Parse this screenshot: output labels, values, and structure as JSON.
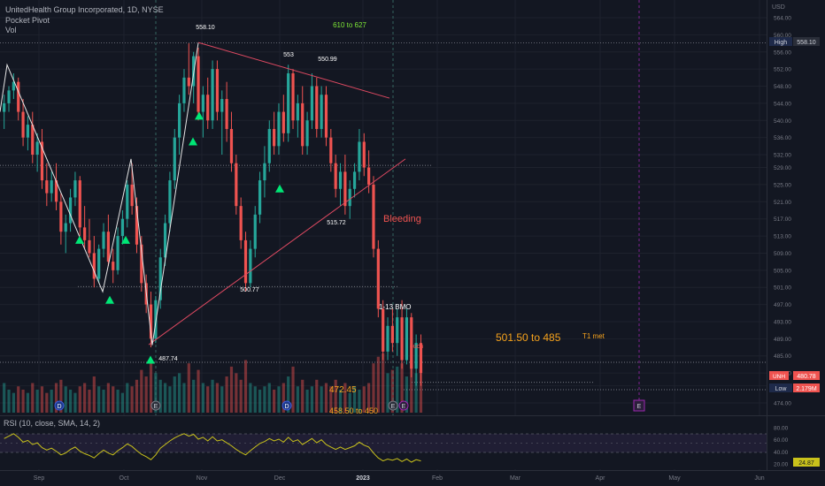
{
  "header": {
    "title": "UnitedHealth Group Incorporated, 1D, NYSE",
    "pocket_pivot": "Pocket Pivot",
    "vol": "Vol"
  },
  "rsi_legend": "RSI (10, close, SMA, 14, 2)",
  "colors": {
    "background": "#131722",
    "up": "#26a69a",
    "down": "#ef5350",
    "trendline": "#e04a62",
    "swing": "#e6e6e6",
    "rsi_line": "#c9c21b",
    "pivot_marker": "#00e676",
    "annotation_orange": "#f7a31c",
    "annotation_red": "#ef5350",
    "annotation_green": "#7ee836",
    "earnings": "#9c27b0"
  },
  "annotations": {
    "top_pivot": "558.10",
    "peak2": "553",
    "peak3": "550.99",
    "target_green": "610 to 627",
    "low_mid": "515.72",
    "low_oct": "500.77",
    "low_start": "487.74",
    "bleeding": "Bleeding",
    "bmo": "1-13 BMO",
    "target_range": "501.50 to 485",
    "t1_met": "T1 met",
    "ouch": "ouch",
    "level1": "472.45",
    "level2": "458.50 to 450"
  },
  "price_scale": {
    "currency": "USD",
    "high_label": "High",
    "high_value": "558.10",
    "last_tag": "UNH",
    "last_value": "480.78",
    "low_label": "Low",
    "vol_value": "2.179M"
  },
  "rsi_scale": {
    "current": "24.87"
  },
  "events": {
    "dividend": "D",
    "earnings": "E"
  },
  "chart_data": {
    "type": "candlestick",
    "title": "UnitedHealth Group Incorporated, 1D, NYSE",
    "currency": "USD",
    "x_labels": [
      "Sep",
      "Oct",
      "Nov",
      "Dec",
      "2023",
      "Feb",
      "Mar",
      "Apr",
      "May",
      "Jun"
    ],
    "y_ticks": [
      "564.00",
      "560.00",
      "556.00",
      "552.00",
      "548.00",
      "544.00",
      "540.00",
      "536.00",
      "532.00",
      "529.00",
      "525.00",
      "521.00",
      "517.00",
      "513.00",
      "509.00",
      "505.00",
      "501.00",
      "497.00",
      "493.00",
      "489.00",
      "485.00",
      "481.00",
      "478.00",
      "474.00"
    ],
    "ylim": [
      474,
      564
    ],
    "rsi_ticks": [
      "80.00",
      "60.00",
      "40.00",
      "20.00"
    ],
    "rsi_lim": [
      20,
      80
    ],
    "key_levels": {
      "high": 558.1,
      "last": 480.78,
      "low_marker": 487.74
    },
    "candles": [
      [
        542,
        546,
        538,
        544
      ],
      [
        544,
        548,
        542,
        547
      ],
      [
        547,
        551,
        545,
        549
      ],
      [
        549,
        550,
        540,
        542
      ],
      [
        542,
        545,
        534,
        536
      ],
      [
        536,
        541,
        533,
        539
      ],
      [
        539,
        542,
        530,
        532
      ],
      [
        532,
        537,
        528,
        535
      ],
      [
        535,
        538,
        524,
        526
      ],
      [
        526,
        530,
        520,
        523
      ],
      [
        523,
        528,
        521,
        526
      ],
      [
        526,
        530,
        519,
        521
      ],
      [
        521,
        523,
        511,
        514
      ],
      [
        514,
        518,
        509,
        516
      ],
      [
        516,
        524,
        514,
        522
      ],
      [
        522,
        528,
        520,
        526
      ],
      [
        526,
        527,
        513,
        515
      ],
      [
        515,
        520,
        510,
        512
      ],
      [
        512,
        517,
        508,
        509
      ],
      [
        509,
        513,
        501,
        503
      ],
      [
        503,
        511,
        502,
        510
      ],
      [
        510,
        516,
        508,
        514
      ],
      [
        514,
        518,
        506,
        507
      ],
      [
        507,
        510,
        502,
        505
      ],
      [
        505,
        515,
        504,
        513
      ],
      [
        513,
        519,
        511,
        517
      ],
      [
        517,
        526,
        515,
        525
      ],
      [
        525,
        530,
        518,
        520
      ],
      [
        520,
        522,
        509,
        511
      ],
      [
        511,
        513,
        500,
        502
      ],
      [
        502,
        504,
        495,
        497
      ],
      [
        497,
        500,
        487,
        489
      ],
      [
        489,
        499,
        488,
        498
      ],
      [
        498,
        510,
        496,
        508
      ],
      [
        508,
        518,
        506,
        516
      ],
      [
        516,
        528,
        514,
        526
      ],
      [
        526,
        538,
        524,
        536
      ],
      [
        536,
        546,
        532,
        544
      ],
      [
        544,
        552,
        542,
        550
      ],
      [
        550,
        558,
        546,
        548
      ],
      [
        548,
        556,
        544,
        555
      ],
      [
        555,
        557,
        540,
        542
      ],
      [
        542,
        548,
        536,
        546
      ],
      [
        546,
        550,
        538,
        540
      ],
      [
        540,
        554,
        538,
        552
      ],
      [
        552,
        554,
        540,
        542
      ],
      [
        542,
        547,
        532,
        545
      ],
      [
        545,
        549,
        535,
        538
      ],
      [
        538,
        542,
        528,
        530
      ],
      [
        530,
        532,
        518,
        520
      ],
      [
        520,
        522,
        510,
        512
      ],
      [
        512,
        514,
        500,
        502
      ],
      [
        502,
        512,
        501,
        510
      ],
      [
        510,
        520,
        508,
        518
      ],
      [
        518,
        528,
        516,
        526
      ],
      [
        526,
        534,
        522,
        530
      ],
      [
        530,
        540,
        528,
        538
      ],
      [
        538,
        542,
        532,
        534
      ],
      [
        534,
        544,
        532,
        542
      ],
      [
        542,
        546,
        535,
        537
      ],
      [
        537,
        553,
        535,
        551
      ],
      [
        551,
        552,
        538,
        540
      ],
      [
        540,
        546,
        536,
        544
      ],
      [
        544,
        548,
        532,
        534
      ],
      [
        534,
        542,
        532,
        540
      ],
      [
        540,
        551,
        538,
        548
      ],
      [
        548,
        550,
        536,
        538
      ],
      [
        538,
        548,
        536,
        546
      ],
      [
        546,
        548,
        534,
        536
      ],
      [
        536,
        538,
        528,
        530
      ],
      [
        530,
        532,
        522,
        524
      ],
      [
        524,
        530,
        520,
        528
      ],
      [
        528,
        532,
        518,
        520
      ],
      [
        520,
        526,
        517,
        524
      ],
      [
        524,
        530,
        522,
        528
      ],
      [
        528,
        538,
        526,
        535
      ],
      [
        535,
        537,
        527,
        529
      ],
      [
        529,
        533,
        523,
        525
      ],
      [
        525,
        527,
        508,
        510
      ],
      [
        510,
        512,
        494,
        496
      ],
      [
        496,
        498,
        484,
        486
      ],
      [
        486,
        494,
        484,
        492
      ],
      [
        492,
        496,
        486,
        488
      ],
      [
        488,
        496,
        485,
        494
      ],
      [
        494,
        498,
        482,
        484
      ],
      [
        484,
        496,
        483,
        494
      ],
      [
        494,
        495,
        480,
        482
      ],
      [
        482,
        490,
        478,
        488
      ],
      [
        488,
        490,
        478,
        481
      ]
    ],
    "volume": [
      0.9,
      0.7,
      0.6,
      0.8,
      0.7,
      0.6,
      0.9,
      0.7,
      0.8,
      0.6,
      0.7,
      0.9,
      1.0,
      0.8,
      0.7,
      0.6,
      0.8,
      0.9,
      0.7,
      1.1,
      0.8,
      0.7,
      0.9,
      0.8,
      0.7,
      0.6,
      0.9,
      0.8,
      1.0,
      1.3,
      1.1,
      1.6,
      1.2,
      1.0,
      0.9,
      0.8,
      1.1,
      1.2,
      0.9,
      1.5,
      1.0,
      1.3,
      0.9,
      0.8,
      1.0,
      0.9,
      0.8,
      1.1,
      1.4,
      1.2,
      1.0,
      1.6,
      0.9,
      0.8,
      0.7,
      0.8,
      0.9,
      0.7,
      0.8,
      0.9,
      1.1,
      1.4,
      0.8,
      1.0,
      0.7,
      0.8,
      1.0,
      0.8,
      0.9,
      0.8,
      1.0,
      0.7,
      0.9,
      0.6,
      0.8,
      0.7,
      0.8,
      0.9,
      1.5,
      1.7,
      1.8,
      1.2,
      1.3,
      1.4,
      1.5,
      1.1,
      1.6,
      1.2,
      1.3
    ],
    "rsi": [
      62,
      66,
      70,
      64,
      56,
      59,
      52,
      55,
      47,
      43,
      46,
      41,
      35,
      38,
      44,
      48,
      41,
      37,
      34,
      30,
      37,
      43,
      38,
      35,
      42,
      47,
      53,
      49,
      42,
      36,
      32,
      27,
      35,
      46,
      52,
      58,
      63,
      67,
      70,
      66,
      69,
      61,
      64,
      58,
      65,
      58,
      60,
      55,
      50,
      44,
      39,
      35,
      42,
      48,
      54,
      57,
      62,
      58,
      61,
      56,
      64,
      57,
      60,
      52,
      57,
      62,
      55,
      60,
      52,
      48,
      44,
      48,
      44,
      47,
      50,
      56,
      51,
      48,
      38,
      30,
      25,
      28,
      26,
      29,
      24,
      28,
      23,
      27,
      25
    ]
  }
}
